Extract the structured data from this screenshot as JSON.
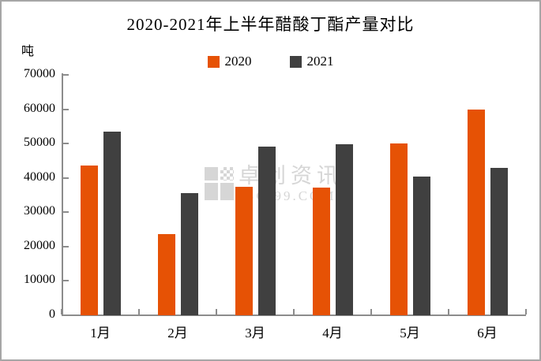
{
  "chart": {
    "title": "2020-2021年上半年醋酸丁酯产量对比",
    "unit_label": "吨",
    "watermark": {
      "line1": "卓创资讯",
      "line2": "SCI99.COM",
      "color": "#d6d6d6"
    },
    "colors": {
      "series_2020": "#e65205",
      "series_2021": "#404040",
      "axis": "#8c8c8c",
      "frame_border": "#a6a6a6"
    }
  },
  "chart_data": {
    "type": "bar",
    "title": "2020-2021年上半年醋酸丁酯产量对比",
    "categories": [
      "1月",
      "2月",
      "3月",
      "4月",
      "5月",
      "6月"
    ],
    "series": [
      {
        "name": "2020",
        "color": "#e65205",
        "values": [
          43600,
          23600,
          37500,
          37200,
          50100,
          59800
        ]
      },
      {
        "name": "2021",
        "color": "#404040",
        "values": [
          53400,
          35500,
          49100,
          49900,
          40400,
          42900
        ]
      }
    ],
    "xlabel": "",
    "ylabel": "吨",
    "ylim": [
      0,
      70000
    ],
    "ytick_step": 10000,
    "grid": false,
    "legend_position": "top-center"
  }
}
